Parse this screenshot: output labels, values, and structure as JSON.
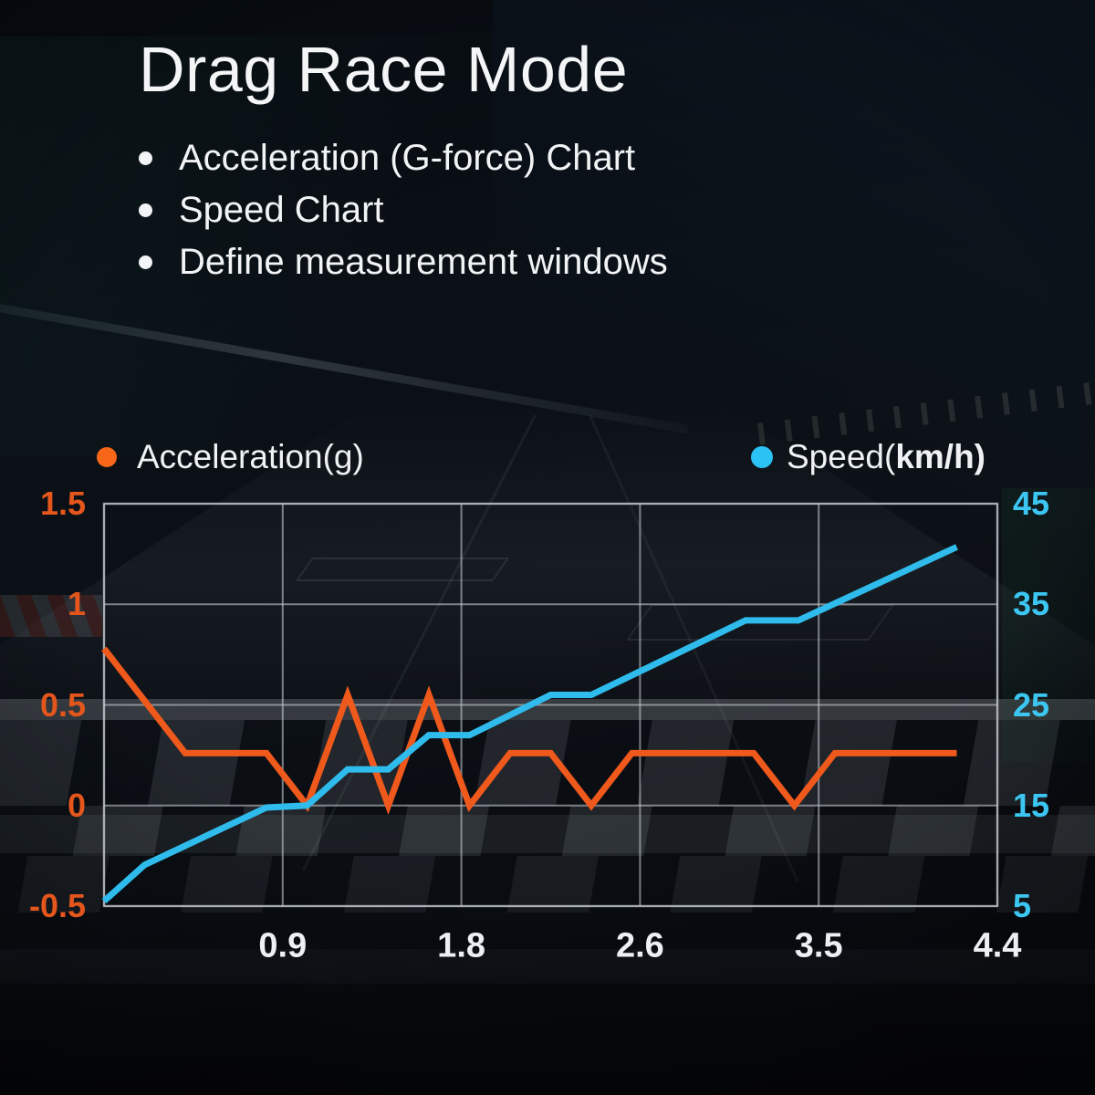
{
  "page": {
    "title": "Drag Race Mode"
  },
  "bullets": [
    {
      "label": "Acceleration (G-force) Chart"
    },
    {
      "label": "Speed Chart"
    },
    {
      "label": "Define measurement windows"
    }
  ],
  "legend": {
    "acceleration": {
      "label": "Acceleration(g)",
      "color": "#F8661A"
    },
    "speed": {
      "label_regular": "Speed(",
      "label_bold": "km/h)",
      "color": "#2BC3F4"
    }
  },
  "chart_data": {
    "type": "line",
    "grid_color": "rgba(196,202,209,0.6)",
    "x_axis": {
      "min": 0,
      "max": 4.4,
      "gridline_values": [
        0.88,
        1.76,
        2.64,
        3.52,
        4.4
      ],
      "tick_labels": [
        "0.9",
        "1.8",
        "2.6",
        "3.5",
        "4.4"
      ],
      "tick_color": "#EDEFF2"
    },
    "left_axis": {
      "label": "Acceleration(g)",
      "min": -0.5,
      "max": 1.5,
      "tick_values": [
        1.5,
        1,
        0.5,
        0,
        -0.5
      ],
      "tick_labels": [
        "1.5",
        "1",
        "0.5",
        "0",
        "-0.5"
      ],
      "tick_color": "#E4561C"
    },
    "right_axis": {
      "label": "Speed(km/h)",
      "min": 5,
      "max": 45,
      "tick_values": [
        45,
        35,
        25,
        15,
        5
      ],
      "tick_labels": [
        "45",
        "35",
        "25",
        "15",
        "5"
      ],
      "tick_color": "#3CC6F2"
    },
    "series": [
      {
        "name": "Acceleration(g)",
        "axis": "left",
        "color": "#F0591C",
        "points": [
          [
            0,
            0.78
          ],
          [
            0.4,
            0.26
          ],
          [
            0.8,
            0.26
          ],
          [
            1.0,
            0.0
          ],
          [
            1.2,
            0.55
          ],
          [
            1.4,
            0.0
          ],
          [
            1.6,
            0.55
          ],
          [
            1.8,
            0.0
          ],
          [
            2.0,
            0.26
          ],
          [
            2.2,
            0.26
          ],
          [
            2.4,
            0.0
          ],
          [
            2.6,
            0.26
          ],
          [
            3.2,
            0.26
          ],
          [
            3.4,
            0.0
          ],
          [
            3.6,
            0.26
          ],
          [
            4.2,
            0.26
          ]
        ]
      },
      {
        "name": "Speed(km/h)",
        "axis": "right",
        "color": "#2FBCEC",
        "points": [
          [
            0,
            5.5
          ],
          [
            0.2,
            9.1
          ],
          [
            0.8,
            14.8
          ],
          [
            1.0,
            15.0
          ],
          [
            1.2,
            18.6
          ],
          [
            1.4,
            18.6
          ],
          [
            1.6,
            22.0
          ],
          [
            1.8,
            22.0
          ],
          [
            2.2,
            26.0
          ],
          [
            2.4,
            26.0
          ],
          [
            3.16,
            33.4
          ],
          [
            3.42,
            33.4
          ],
          [
            4.2,
            40.7
          ]
        ]
      }
    ]
  }
}
